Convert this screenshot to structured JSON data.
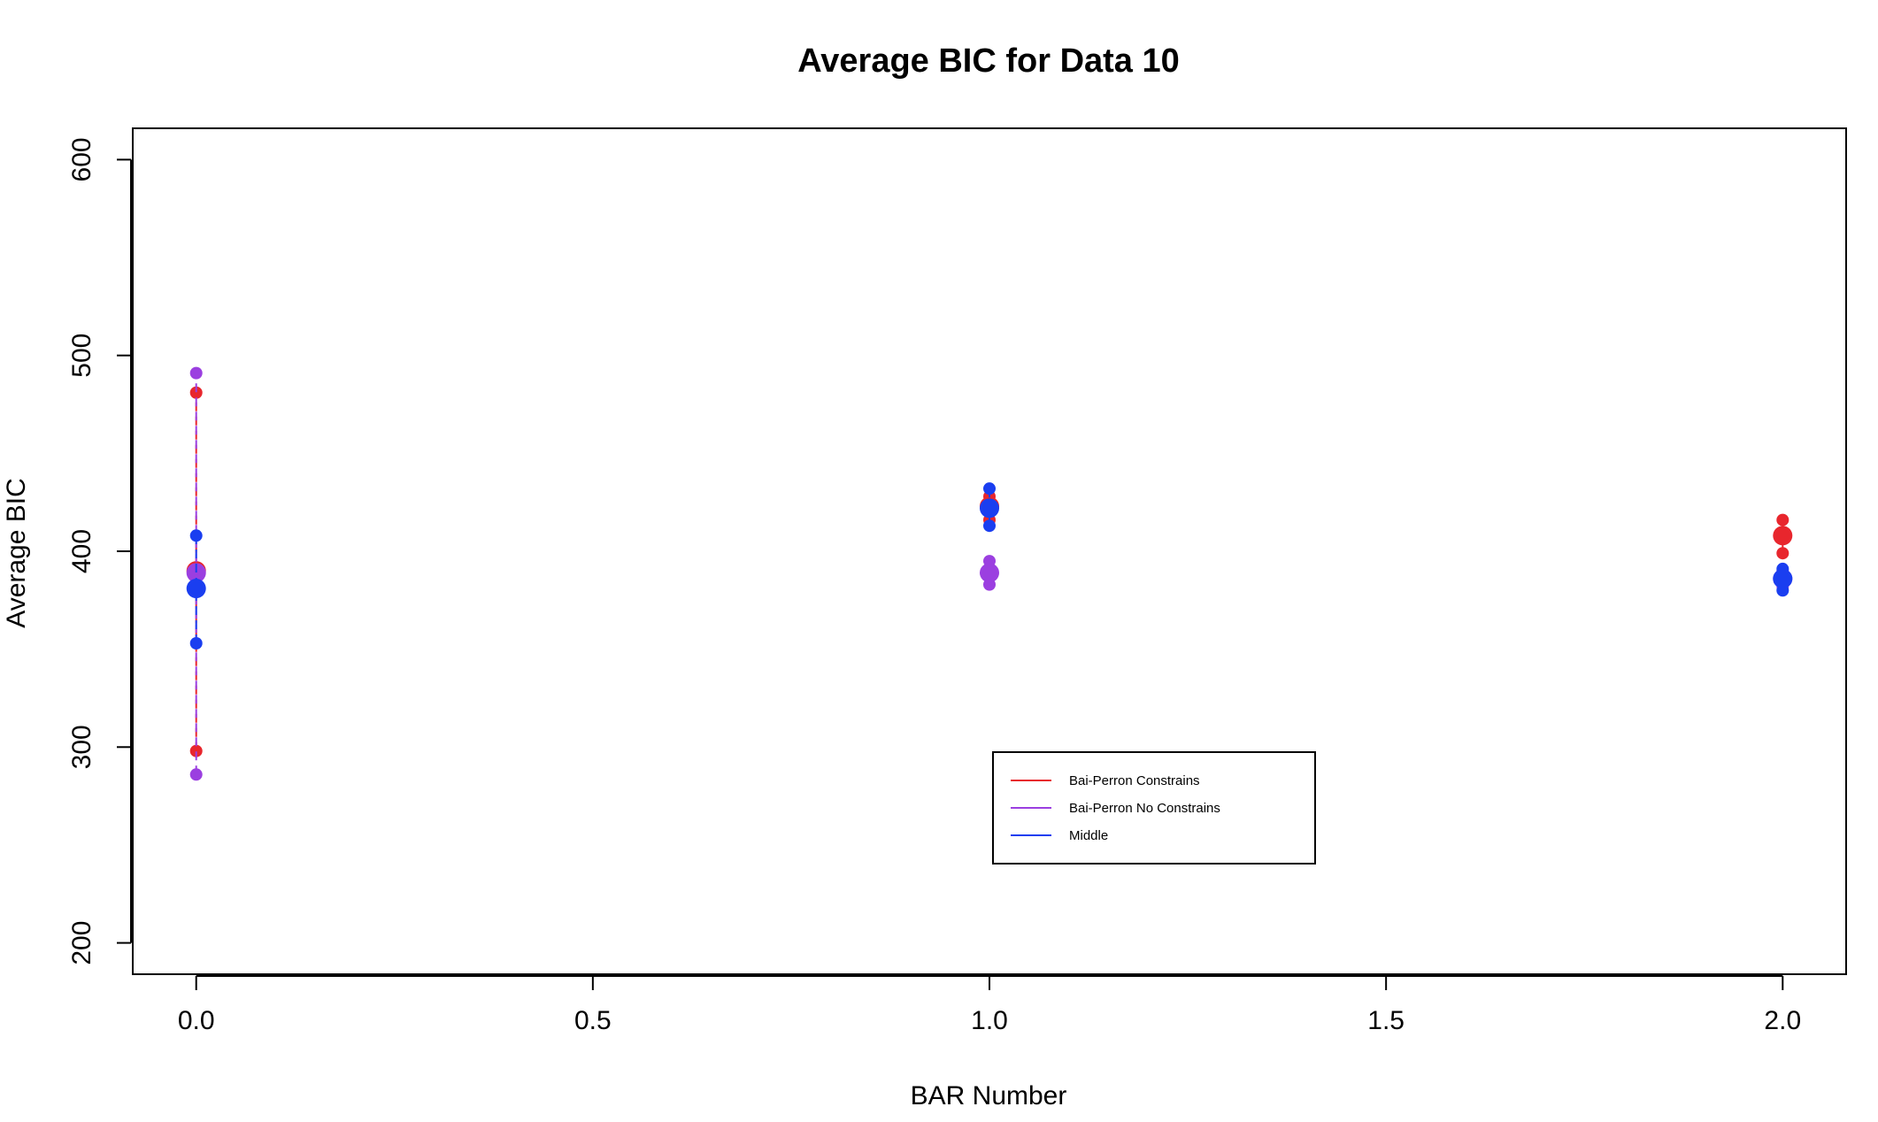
{
  "chart_data": {
    "type": "scatter",
    "title": "Average BIC for Data 10",
    "xlabel": "BAR Number",
    "ylabel": "Average BIC",
    "xlim": [
      -0.08,
      2.08
    ],
    "ylim": [
      184,
      616
    ],
    "x_ticks": [
      0.0,
      0.5,
      1.0,
      1.5,
      2.0
    ],
    "x_tick_labels": [
      "0.0",
      "0.5",
      "1.0",
      "1.5",
      "2.0"
    ],
    "y_ticks": [
      200,
      300,
      400,
      500,
      600
    ],
    "y_tick_labels": [
      "200",
      "300",
      "400",
      "500",
      "600"
    ],
    "grid": false,
    "legend_position": "bottom-center",
    "series": [
      {
        "name": "Bai-Perron Constrains",
        "color": "#e8262d",
        "points": [
          {
            "x": 0,
            "mean": 390,
            "lower": 298,
            "upper": 481
          },
          {
            "x": 1,
            "mean": 423,
            "lower": 416,
            "upper": 428
          },
          {
            "x": 2,
            "mean": 408,
            "lower": 399,
            "upper": 416
          }
        ]
      },
      {
        "name": "Bai-Perron No Constrains",
        "color": "#9b3fe0",
        "points": [
          {
            "x": 0,
            "mean": 389,
            "lower": 286,
            "upper": 491
          },
          {
            "x": 1,
            "mean": 389,
            "lower": 383,
            "upper": 395
          },
          {
            "x": 2,
            "mean": 386,
            "lower": 382,
            "upper": 390
          }
        ]
      },
      {
        "name": "Middle",
        "color": "#1a3ef0",
        "points": [
          {
            "x": 0,
            "mean": 381,
            "lower": 353,
            "upper": 408
          },
          {
            "x": 1,
            "mean": 422,
            "lower": 413,
            "upper": 432
          },
          {
            "x": 2,
            "mean": 386,
            "lower": 380,
            "upper": 391
          }
        ]
      }
    ]
  }
}
